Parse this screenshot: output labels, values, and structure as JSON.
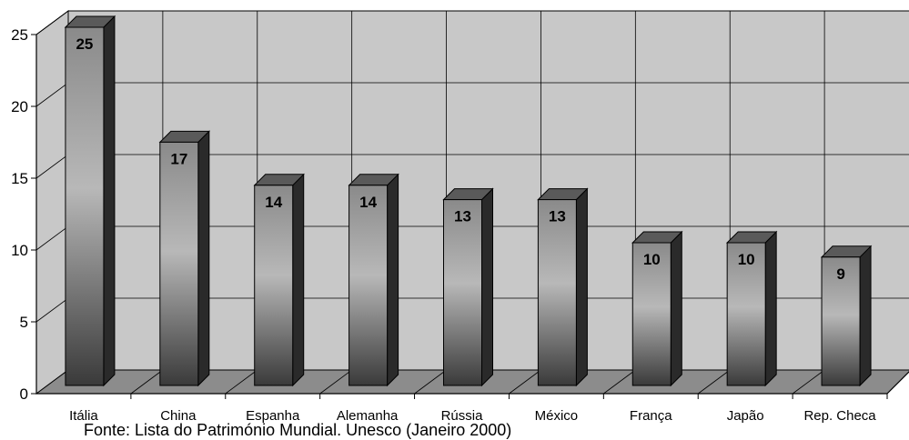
{
  "chart_data": {
    "type": "bar",
    "style": "3d-column",
    "title": "",
    "xlabel": "",
    "ylabel": "",
    "categories": [
      "Itália",
      "China",
      "Espanha",
      "Alemanha",
      "Rússia",
      "México",
      "França",
      "Japão",
      "Rep. Checa"
    ],
    "values": [
      25,
      17,
      14,
      14,
      13,
      13,
      10,
      10,
      9
    ],
    "data_labels": [
      "25",
      "17",
      "14",
      "14",
      "13",
      "13",
      "10",
      "10",
      "9"
    ],
    "ylim": [
      0,
      25
    ],
    "yticks": [
      0,
      5,
      10,
      15,
      20,
      25
    ],
    "ytick_labels": [
      "0",
      "5",
      "10",
      "15",
      "20",
      "25"
    ],
    "grid": true,
    "legend": "none",
    "source": "Fonte: Lista do Património Mundial. Unesco (Janeiro 2000)"
  },
  "colors": {
    "wall": "#c8c8c8",
    "floor": "#8c8c8c",
    "grid": "#000000",
    "bar_light": "#b4b4b4",
    "bar_dark": "#3c3c3c",
    "bar_side": "#2a2a2a",
    "bar_top": "#5a5a5a"
  }
}
